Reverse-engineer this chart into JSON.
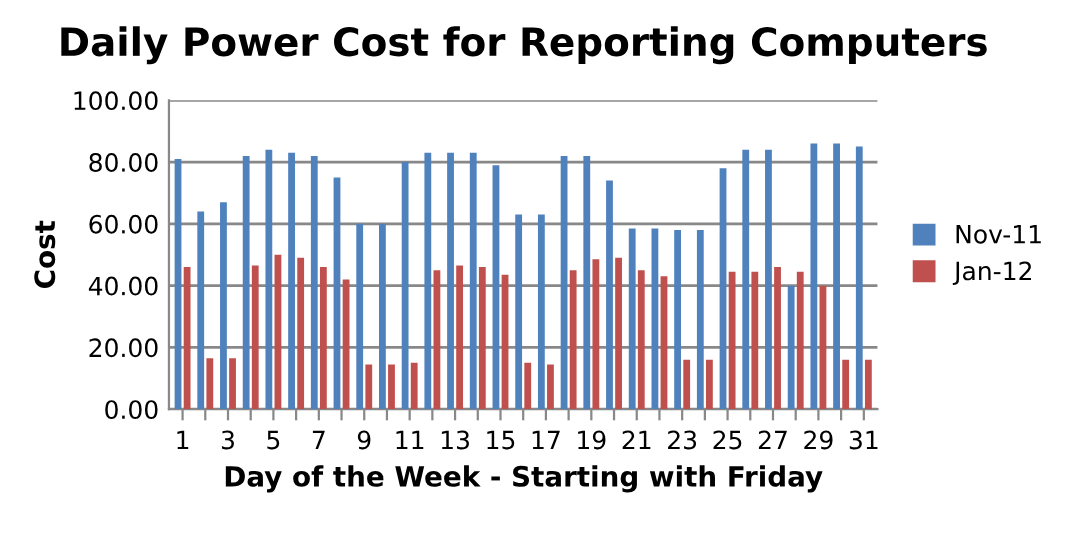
{
  "chart_data": {
    "type": "bar",
    "title": "Daily Power Cost for Reporting Computers",
    "xlabel": "Day of the Week - Starting with Friday",
    "ylabel": "Cost",
    "categories": [
      "1",
      null,
      "3",
      null,
      "5",
      null,
      "7",
      null,
      "9",
      null,
      "11",
      null,
      "13",
      null,
      "15",
      null,
      "17",
      null,
      "19",
      null,
      "21",
      null,
      "23",
      null,
      "25",
      null,
      "27",
      null,
      "29",
      null,
      "31"
    ],
    "series": [
      {
        "name": "Nov-11",
        "color": "#4f81bd",
        "values": [
          81,
          64,
          67,
          82,
          84,
          83,
          82,
          75,
          60,
          60,
          80,
          83,
          83,
          83,
          79,
          63,
          63,
          82,
          82,
          74,
          58.5,
          58.5,
          58,
          58,
          78,
          84,
          84,
          40,
          86,
          86,
          85
        ]
      },
      {
        "name": "Jan-12",
        "color": "#c0504d",
        "values": [
          46,
          16.5,
          16.5,
          46.5,
          50,
          49,
          46,
          42,
          14.5,
          14.5,
          15,
          45,
          46.5,
          46,
          43.5,
          15,
          14.5,
          45,
          48.5,
          49,
          45,
          43,
          16,
          16,
          44.5,
          44.5,
          46,
          44.5,
          40,
          16,
          16
        ]
      }
    ],
    "ylim": [
      0,
      100
    ],
    "yticks": [
      {
        "value": 0,
        "label": "0.00"
      },
      {
        "value": 20,
        "label": "20.00"
      },
      {
        "value": 40,
        "label": "40.00"
      },
      {
        "value": 60,
        "label": "60.00"
      },
      {
        "value": 80,
        "label": "80.00"
      },
      {
        "value": 100,
        "label": "100.00"
      }
    ],
    "grid": "y",
    "legend": "right"
  }
}
